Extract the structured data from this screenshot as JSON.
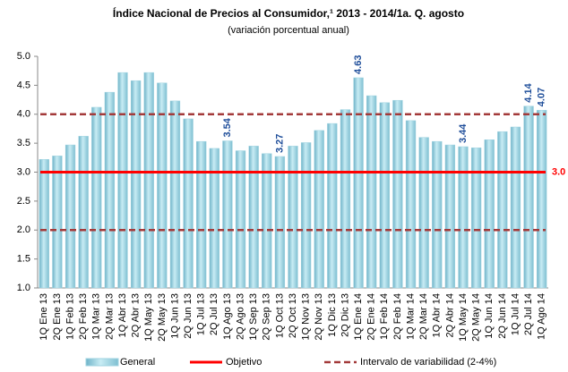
{
  "chart_data": {
    "type": "bar",
    "title": "Índice Nacional de Precios  al Consumidor,¹  2013 - 2014/1a. Q. agosto",
    "subtitle": "(variación porcentual anual)",
    "categories": [
      "1Q Ene 13",
      "2Q Ene 13",
      "1Q Feb 13",
      "2Q Feb 13",
      "1Q Mar 13",
      "2Q Mar 13",
      "1Q Abr 13",
      "2Q Abr 13",
      "1Q May 13",
      "2Q May 13",
      "1Q Jun 13",
      "2Q Jun 13",
      "1Q Jul 13",
      "2Q Jul 13",
      "1Q Ago 13",
      "2Q Ago 13",
      "1Q Sep 13",
      "2Q Sep 13",
      "1Q Oct 13",
      "2Q Oct 13",
      "1Q Nov 13",
      "2Q Nov 13",
      "1Q Dic 13",
      "2Q Dic 13",
      "1Q Ene 14",
      "2Q Ene 14",
      "1Q Feb 14",
      "2Q Feb 14",
      "1Q Mar 14",
      "2Q Mar 14",
      "1Q Abr 14",
      "2Q Abr 14",
      "1Q May 14",
      "2Q May 14",
      "1Q Jun 14",
      "2Q Jun 14",
      "1Q Jul 14",
      "2Q Jul 14",
      "1Q Ago 14"
    ],
    "series": [
      {
        "name": "General",
        "color": "#9fd3e0",
        "values": [
          3.22,
          3.28,
          3.47,
          3.62,
          4.12,
          4.38,
          4.72,
          4.58,
          4.72,
          4.54,
          4.23,
          3.92,
          3.53,
          3.41,
          3.54,
          3.37,
          3.45,
          3.32,
          3.27,
          3.45,
          3.51,
          3.72,
          3.84,
          4.08,
          4.63,
          4.32,
          4.2,
          4.24,
          3.89,
          3.6,
          3.53,
          3.47,
          3.44,
          3.42,
          3.56,
          3.7,
          3.78,
          4.14,
          4.07
        ],
        "value_labels": [
          null,
          null,
          null,
          null,
          null,
          null,
          null,
          null,
          null,
          null,
          null,
          null,
          null,
          null,
          "3.54",
          null,
          null,
          null,
          "3.27",
          null,
          null,
          null,
          null,
          null,
          "4.63",
          null,
          null,
          null,
          null,
          null,
          null,
          null,
          "3.44",
          null,
          null,
          null,
          null,
          "4.14",
          "4.07"
        ]
      }
    ],
    "reference_lines": [
      {
        "name": "Objetivo",
        "color": "#ff0000",
        "values": [
          3.0
        ],
        "value_labels": [
          "3.0"
        ],
        "dashed": false
      },
      {
        "name": "Intervalo de variabilidad (2-4%)",
        "color": "#a33a3a",
        "values": [
          2,
          4
        ],
        "dashed": true
      }
    ],
    "ylim": [
      1,
      5
    ],
    "yticks": [
      {
        "value": 1,
        "label": "1.0"
      },
      {
        "value": 1.5,
        "label": "1.5"
      },
      {
        "value": 2,
        "label": "2.0"
      },
      {
        "value": 2.5,
        "label": "2.5"
      },
      {
        "value": 3,
        "label": "3.0"
      },
      {
        "value": 3.5,
        "label": "3.5"
      },
      {
        "value": 4,
        "label": "4.0"
      },
      {
        "value": 4.5,
        "label": "4.5"
      },
      {
        "value": 5,
        "label": "5.0"
      }
    ],
    "grid": false
  }
}
